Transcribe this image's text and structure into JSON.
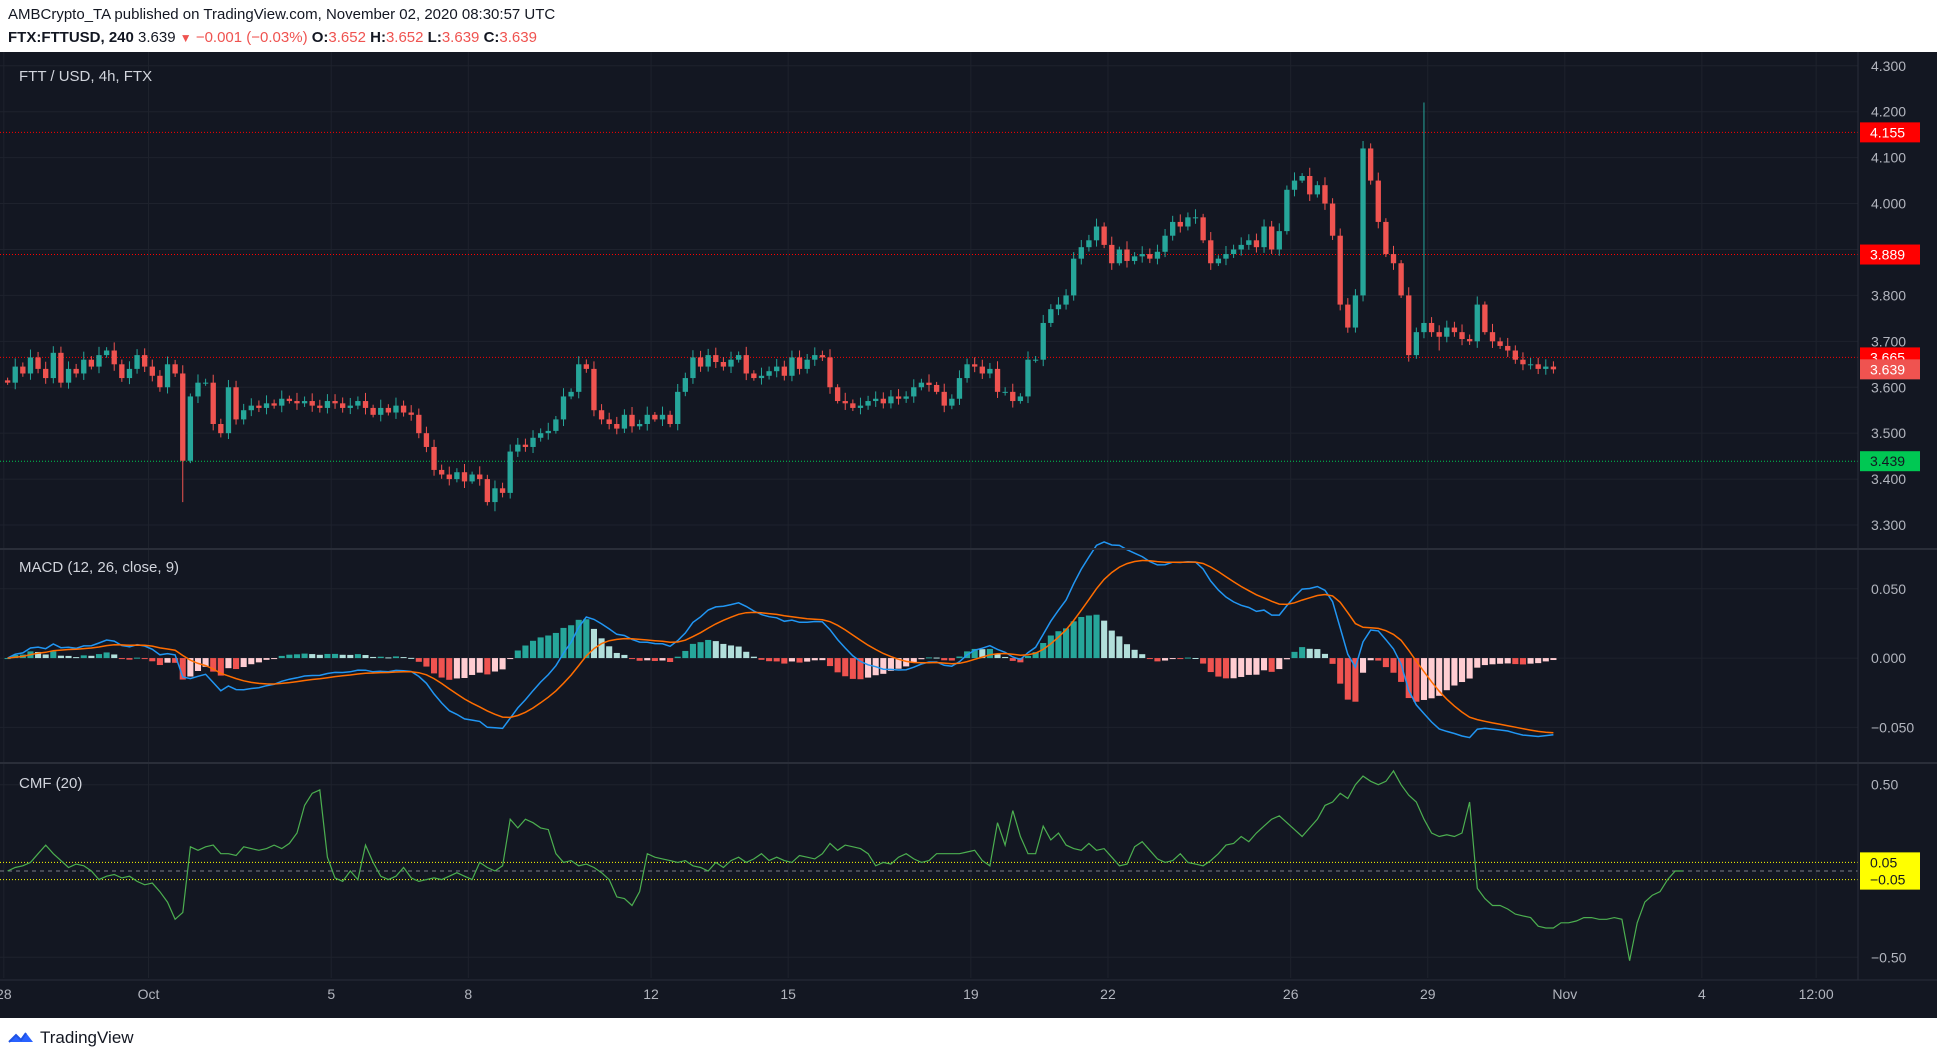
{
  "header": {
    "line1": "AMBCrypto_TA published on TradingView.com, November 02, 2020 08:30:57 UTC",
    "symbol": "FTX:FTTUSD, 240",
    "last": "3.639",
    "change": "−0.001 (−0.03%)",
    "ohlc": [
      {
        "label": "O:",
        "value": "3.652"
      },
      {
        "label": "H:",
        "value": "3.652"
      },
      {
        "label": "L:",
        "value": "3.639"
      },
      {
        "label": "C:",
        "value": "3.639"
      }
    ]
  },
  "footer": {
    "brand": "TradingView",
    "logo_icon": "tradingview-logo-icon"
  },
  "colors": {
    "background": "#131722",
    "up": "#26a69a",
    "down": "#ef5350",
    "grid": "#1e222d",
    "axis_text": "#b2b5be",
    "macd_line": "#2196f3",
    "signal_line": "#ff6d00",
    "cmf_line": "#4caf50",
    "level_red": "#ff0000",
    "level_green": "#00c853",
    "level_yellow": "#ffff00"
  },
  "chart_data": [
    {
      "type": "candlestick",
      "title": "FTT / USD, 4h, FTX",
      "ylim": [
        3.25,
        4.33
      ],
      "yticks": [
        3.3,
        3.4,
        3.5,
        3.6,
        3.7,
        3.8,
        3.9,
        4.0,
        4.1,
        4.2,
        4.3
      ],
      "x_tick_labels": [
        {
          "label": "28",
          "bar": -0.5
        },
        {
          "label": "Oct",
          "bar": 18.5
        },
        {
          "label": "5",
          "bar": 42.5
        },
        {
          "label": "8",
          "bar": 60.5
        },
        {
          "label": "12",
          "bar": 84.5
        },
        {
          "label": "15",
          "bar": 102.5
        },
        {
          "label": "19",
          "bar": 126.5
        },
        {
          "label": "22",
          "bar": 144.5
        },
        {
          "label": "26",
          "bar": 168.5
        },
        {
          "label": "29",
          "bar": 186.5
        },
        {
          "label": "Nov",
          "bar": 204.5
        },
        {
          "label": "4",
          "bar": 222.5
        },
        {
          "label": "12:00",
          "bar": 237.5
        }
      ],
      "x_range_bars": [
        -1,
        243
      ],
      "levels": [
        {
          "value": 4.155,
          "label": "4.155",
          "color": "#ff0000"
        },
        {
          "value": 3.889,
          "label": "3.889",
          "color": "#ff0000"
        },
        {
          "value": 3.665,
          "label": "3.665",
          "color": "#ff0000"
        },
        {
          "value": 3.439,
          "label": "3.439",
          "color": "#00c853"
        }
      ],
      "last_price": {
        "value": 3.639,
        "label": "3.639"
      },
      "closes": [
        3.61,
        3.645,
        3.63,
        3.665,
        3.64,
        3.62,
        3.675,
        3.61,
        3.64,
        3.63,
        3.66,
        3.645,
        3.67,
        3.68,
        3.65,
        3.62,
        3.64,
        3.67,
        3.645,
        3.625,
        3.6,
        3.65,
        3.63,
        3.44,
        3.58,
        3.61,
        3.61,
        3.52,
        3.5,
        3.6,
        3.53,
        3.55,
        3.56,
        3.555,
        3.565,
        3.56,
        3.575,
        3.57,
        3.565,
        3.57,
        3.56,
        3.555,
        3.57,
        3.565,
        3.555,
        3.56,
        3.57,
        3.555,
        3.54,
        3.555,
        3.545,
        3.56,
        3.545,
        3.54,
        3.5,
        3.47,
        3.42,
        3.41,
        3.4,
        3.415,
        3.395,
        3.41,
        3.4,
        3.35,
        3.38,
        3.37,
        3.46,
        3.475,
        3.47,
        3.49,
        3.5,
        3.505,
        3.53,
        3.58,
        3.59,
        3.65,
        3.64,
        3.55,
        3.53,
        3.52,
        3.51,
        3.54,
        3.515,
        3.52,
        3.54,
        3.53,
        3.54,
        3.52,
        3.59,
        3.62,
        3.665,
        3.645,
        3.67,
        3.655,
        3.645,
        3.66,
        3.67,
        3.63,
        3.62,
        3.625,
        3.635,
        3.645,
        3.625,
        3.665,
        3.64,
        3.66,
        3.67,
        3.665,
        3.6,
        3.57,
        3.565,
        3.555,
        3.56,
        3.57,
        3.575,
        3.565,
        3.58,
        3.575,
        3.58,
        3.6,
        3.61,
        3.605,
        3.59,
        3.56,
        3.575,
        3.62,
        3.65,
        3.645,
        3.63,
        3.64,
        3.59,
        3.59,
        3.57,
        3.58,
        3.66,
        3.66,
        3.74,
        3.77,
        3.78,
        3.8,
        3.88,
        3.905,
        3.92,
        3.95,
        3.91,
        3.87,
        3.9,
        3.875,
        3.885,
        3.89,
        3.88,
        3.895,
        3.93,
        3.96,
        3.95,
        3.97,
        3.97,
        3.92,
        3.87,
        3.88,
        3.89,
        3.9,
        3.91,
        3.92,
        3.905,
        3.95,
        3.9,
        3.94,
        4.03,
        4.05,
        4.06,
        4.02,
        4.04,
        4.0,
        3.93,
        3.78,
        3.73,
        3.8,
        4.12,
        4.05,
        3.96,
        3.89,
        3.87,
        3.8,
        3.67,
        3.72,
        3.74,
        3.72,
        3.71,
        3.73,
        3.72,
        3.705,
        3.7,
        3.78,
        3.72,
        3.7,
        3.69,
        3.68,
        3.66,
        3.65,
        3.65,
        3.64,
        3.645,
        3.639
      ],
      "macd_panel": {
        "title": "MACD (12, 26, close, 9)",
        "ylim": [
          -0.075,
          0.078
        ],
        "yticks": [
          -0.05,
          0.0,
          0.05
        ],
        "series": [
          "MACD",
          "Signal",
          "Histogram"
        ]
      },
      "cmf_panel": {
        "title": "CMF (20)",
        "ylim": [
          -0.62,
          0.62
        ],
        "yticks": [
          -0.5,
          0.5
        ],
        "levels": [
          {
            "value": 0.05,
            "label": "0.05",
            "color": "#ffff00"
          },
          {
            "value": -0.05,
            "label": "−0.05",
            "color": "#ffff00"
          }
        ],
        "values": [
          0.0,
          0.02,
          0.03,
          0.05,
          0.1,
          0.15,
          0.1,
          0.06,
          0.02,
          0.04,
          0.03,
          0.0,
          -0.05,
          -0.03,
          -0.02,
          -0.04,
          -0.03,
          -0.06,
          -0.08,
          -0.07,
          -0.12,
          -0.18,
          -0.28,
          -0.24,
          0.14,
          0.12,
          0.14,
          0.15,
          0.1,
          0.1,
          0.09,
          0.14,
          0.13,
          0.12,
          0.13,
          0.15,
          0.13,
          0.16,
          0.22,
          0.38,
          0.45,
          0.47,
          0.08,
          -0.04,
          -0.06,
          0.0,
          -0.05,
          0.15,
          0.05,
          -0.03,
          -0.05,
          -0.03,
          0.02,
          -0.04,
          -0.06,
          -0.05,
          -0.04,
          -0.05,
          -0.03,
          -0.01,
          -0.03,
          -0.05,
          0.05,
          0.02,
          0.0,
          0.03,
          0.3,
          0.25,
          0.3,
          0.28,
          0.25,
          0.24,
          0.1,
          0.05,
          0.06,
          0.03,
          0.04,
          0.02,
          -0.01,
          -0.05,
          -0.15,
          -0.16,
          -0.2,
          -0.12,
          0.1,
          0.08,
          0.07,
          0.06,
          0.05,
          0.06,
          0.03,
          0.02,
          0.0,
          0.05,
          0.02,
          0.06,
          0.08,
          0.05,
          0.07,
          0.1,
          0.06,
          0.08,
          0.06,
          0.05,
          0.09,
          0.08,
          0.07,
          0.1,
          0.16,
          0.12,
          0.15,
          0.14,
          0.13,
          0.1,
          0.03,
          0.05,
          0.04,
          0.08,
          0.1,
          0.07,
          0.05,
          0.06,
          0.1,
          0.1,
          0.1,
          0.1,
          0.11,
          0.12,
          0.06,
          0.03,
          0.28,
          0.15,
          0.35,
          0.2,
          0.1,
          0.1,
          0.26,
          0.18,
          0.22,
          0.15,
          0.13,
          0.12,
          0.16,
          0.12,
          0.13,
          0.08,
          0.03,
          0.04,
          0.14,
          0.17,
          0.12,
          0.07,
          0.05,
          0.06,
          0.1,
          0.05,
          0.04,
          0.03,
          0.06,
          0.1,
          0.15,
          0.16,
          0.2,
          0.17,
          0.22,
          0.26,
          0.3,
          0.32,
          0.28,
          0.24,
          0.2,
          0.25,
          0.3,
          0.38,
          0.4,
          0.45,
          0.42,
          0.5,
          0.55,
          0.52,
          0.5,
          0.52,
          0.58,
          0.5,
          0.44,
          0.4,
          0.3,
          0.22,
          0.2,
          0.21,
          0.2,
          0.22,
          0.4,
          -0.1,
          -0.16,
          -0.2,
          -0.2,
          -0.22,
          -0.25,
          -0.26,
          -0.27,
          -0.32,
          -0.33,
          -0.33,
          -0.3,
          -0.3,
          -0.29,
          -0.27,
          -0.27,
          -0.28,
          -0.28,
          -0.27,
          -0.28,
          -0.52,
          -0.3,
          -0.18,
          -0.14,
          -0.12,
          -0.05,
          0.0,
          0.0
        ]
      }
    }
  ]
}
